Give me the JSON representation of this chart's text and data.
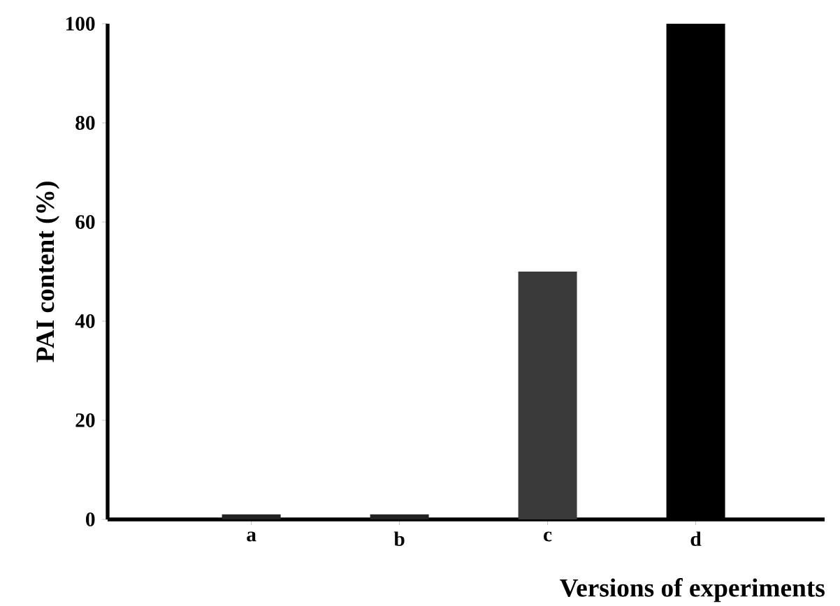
{
  "chart_data": {
    "type": "bar",
    "ylabel": "PAI content (%)",
    "xlabel": "Versions of experiments",
    "categories": [
      "a",
      "b",
      "c",
      "d"
    ],
    "values": [
      1,
      1,
      50,
      100
    ],
    "colors": [
      "#222222",
      "#222222",
      "#3a3a3a",
      "#000000"
    ],
    "ylim": [
      0,
      100
    ],
    "yticks": [
      0,
      20,
      40,
      60,
      80,
      100
    ]
  }
}
